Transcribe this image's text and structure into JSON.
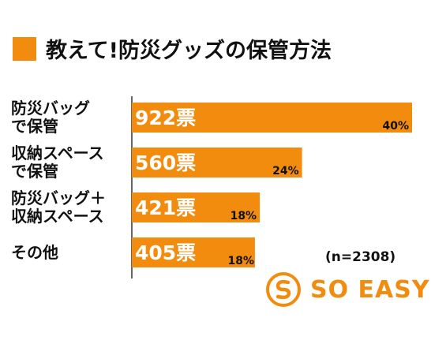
{
  "title": "教えて!防災グッズの保管方法",
  "note": "(n=2308)",
  "logo": {
    "text": "SO EASY",
    "icon": "s-circle-logo-icon"
  },
  "colors": {
    "accent": "#f28c0f",
    "text": "#111111",
    "bar_text": "#ffffff"
  },
  "chart_data": {
    "type": "bar",
    "orientation": "horizontal",
    "title": "教えて!防災グッズの保管方法",
    "categories": [
      [
        "防災バッグ",
        "で保管"
      ],
      [
        "収納スペース",
        "で保管"
      ],
      [
        "防災バッグ＋",
        "収納スペース"
      ],
      [
        "その他"
      ]
    ],
    "values": [
      922,
      560,
      421,
      405
    ],
    "value_labels": [
      "922票",
      "560票",
      "421票",
      "405票"
    ],
    "percent_labels": [
      "40%",
      "24%",
      "18%",
      "18%"
    ],
    "grid": false,
    "legend": "none"
  }
}
